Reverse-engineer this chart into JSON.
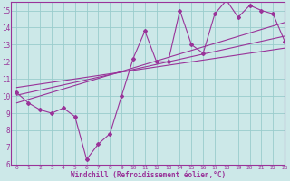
{
  "x_data": [
    0,
    1,
    2,
    3,
    4,
    5,
    6,
    7,
    8,
    9,
    10,
    11,
    12,
    13,
    14,
    15,
    16,
    17,
    18,
    19,
    20,
    21,
    22,
    23
  ],
  "y_main": [
    10.2,
    9.6,
    9.2,
    9.0,
    9.3,
    8.8,
    6.3,
    7.2,
    7.8,
    10.0,
    12.2,
    13.8,
    12.0,
    12.0,
    15.0,
    13.0,
    12.5,
    14.8,
    15.6,
    14.6,
    15.3,
    15.0,
    14.8,
    13.2
  ],
  "trend1_x": [
    0,
    23
  ],
  "trend1_y": [
    10.05,
    13.5
  ],
  "trend2_x": [
    0,
    23
  ],
  "trend2_y": [
    9.6,
    14.3
  ],
  "trend3_x": [
    0,
    23
  ],
  "trend3_y": [
    10.5,
    12.8
  ],
  "xlim": [
    -0.5,
    23
  ],
  "ylim": [
    6,
    15.5
  ],
  "yticks": [
    6,
    7,
    8,
    9,
    10,
    11,
    12,
    13,
    14,
    15
  ],
  "xticks": [
    0,
    1,
    2,
    3,
    4,
    5,
    6,
    7,
    8,
    9,
    10,
    11,
    12,
    13,
    14,
    15,
    16,
    17,
    18,
    19,
    20,
    21,
    22,
    23
  ],
  "xlabel": "Windchill (Refroidissement éolien,°C)",
  "line_color": "#993399",
  "bg_color": "#cce8e8",
  "grid_color": "#99cccc",
  "tick_color": "#993399",
  "xlabel_color": "#993399"
}
